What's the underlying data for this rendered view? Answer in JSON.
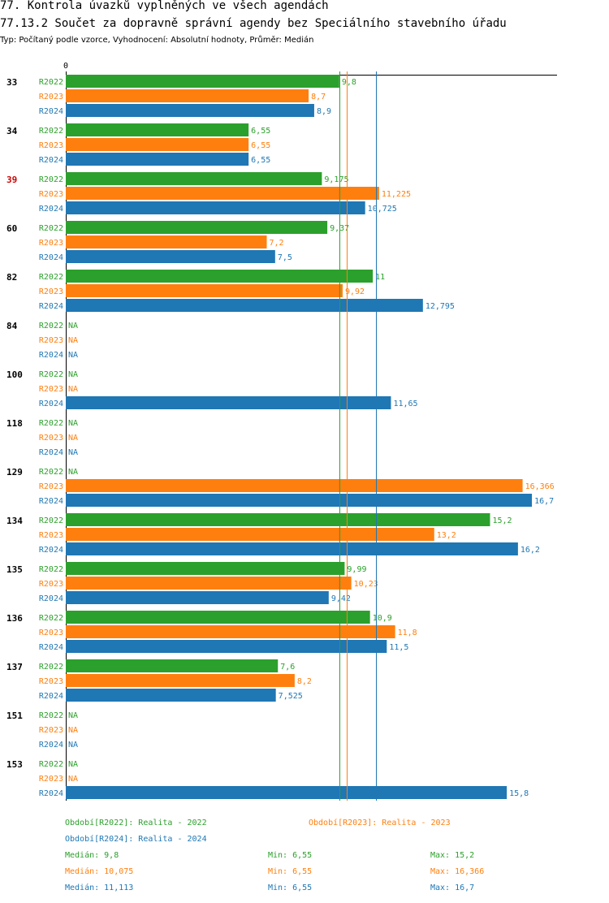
{
  "header": {
    "title": "77. Kontrola úvazků vyplněných ve všech agendách",
    "subtitle_title": "77.13.2 Součet za dopravně správní agendy bez Speciálního stavebního úřadu",
    "description": "Typ: Počítaný podle vzorce, Vyhodnocení: Absolutní hodnoty, Průměr: Medián"
  },
  "chart_data": {
    "type": "bar",
    "orientation": "horizontal",
    "axis_zero_label": "0",
    "xlim": [
      0,
      17.6
    ],
    "categories": [
      "33",
      "34",
      "39",
      "60",
      "82",
      "84",
      "100",
      "118",
      "129",
      "134",
      "135",
      "136",
      "137",
      "151",
      "153"
    ],
    "highlighted_category": "39",
    "na_label": "NA",
    "series": [
      {
        "name": "R2022",
        "color": "#2ca02c",
        "values": [
          9.8,
          6.55,
          9.175,
          9.37,
          11,
          null,
          null,
          null,
          null,
          15.2,
          9.99,
          10.9,
          7.6,
          null,
          null
        ],
        "labels": [
          "9,8",
          "6,55",
          "9,175",
          "9,37",
          "11",
          "NA",
          "NA",
          "NA",
          "NA",
          "15,2",
          "9,99",
          "10,9",
          "7,6",
          "NA",
          "NA"
        ]
      },
      {
        "name": "R2023",
        "color": "#ff7f0e",
        "values": [
          8.7,
          6.55,
          11.225,
          7.2,
          9.92,
          null,
          null,
          null,
          16.366,
          13.2,
          10.23,
          11.8,
          8.2,
          null,
          null
        ],
        "labels": [
          "8,7",
          "6,55",
          "11,225",
          "7,2",
          "9,92",
          "NA",
          "NA",
          "NA",
          "16,366",
          "13,2",
          "10,23",
          "11,8",
          "8,2",
          "NA",
          "NA"
        ]
      },
      {
        "name": "R2024",
        "color": "#1f77b4",
        "values": [
          8.9,
          6.55,
          10.725,
          7.5,
          12.795,
          null,
          11.65,
          null,
          16.7,
          16.2,
          9.42,
          11.5,
          7.525,
          null,
          15.8
        ],
        "labels": [
          "8,9",
          "6,55",
          "10,725",
          "7,5",
          "12,795",
          "NA",
          "11,65",
          "NA",
          "16,7",
          "16,2",
          "9,42",
          "11,5",
          "7,525",
          "NA",
          "15,8"
        ]
      }
    ],
    "median_lines": [
      9.8,
      10.075,
      11.113
    ]
  },
  "legend": {
    "periods": [
      {
        "text": "Období[R2022]: Realita - 2022",
        "color": "#2ca02c"
      },
      {
        "text": "Období[R2023]: Realita - 2023",
        "color": "#ff7f0e"
      },
      {
        "text": "Období[R2024]: Realita - 2024",
        "color": "#1f77b4"
      }
    ],
    "stats": [
      {
        "median": "Medián: 9,8",
        "min": "Min: 6,55",
        "max": "Max: 15,2",
        "color": "#2ca02c"
      },
      {
        "median": "Medián: 10,075",
        "min": "Min: 6,55",
        "max": "Max: 16,366",
        "color": "#ff7f0e"
      },
      {
        "median": "Medián: 11,113",
        "min": "Min: 6,55",
        "max": "Max: 16,7",
        "color": "#1f77b4"
      }
    ]
  }
}
